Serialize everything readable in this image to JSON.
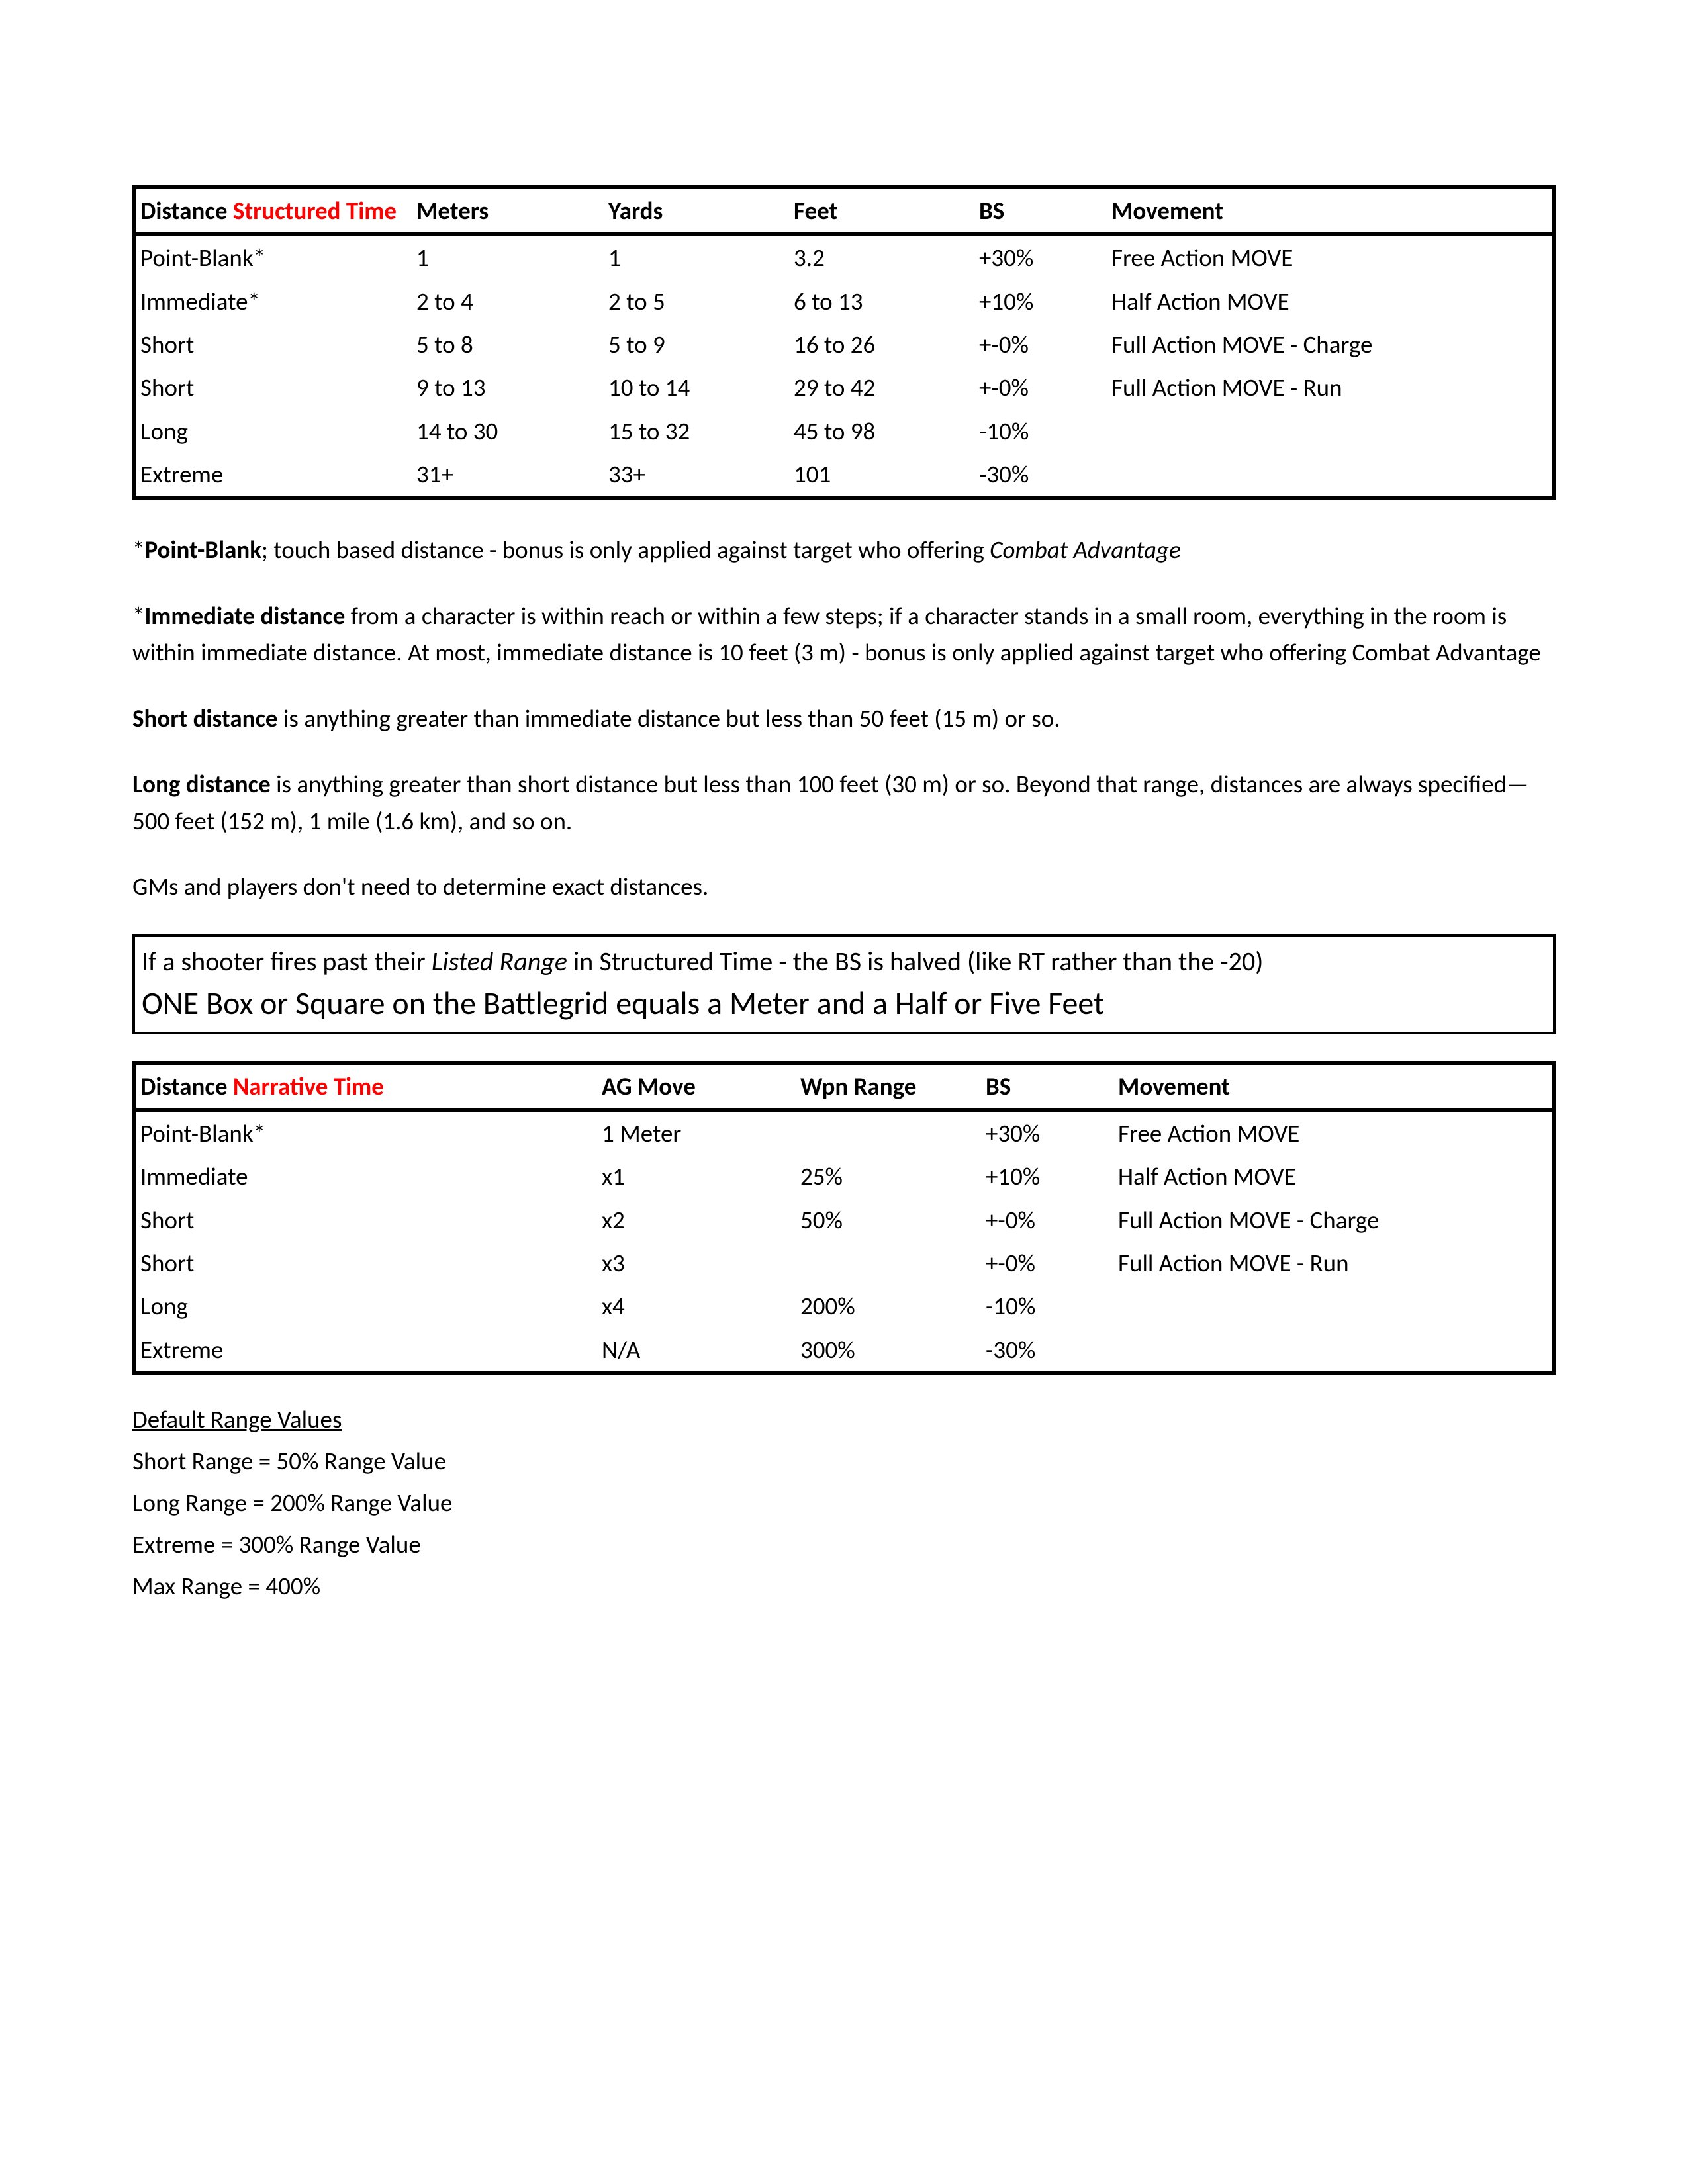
{
  "colors": {
    "border": "#000000",
    "text": "#000000",
    "red": "#ff0000",
    "background": "#ffffff"
  },
  "table1": {
    "header": {
      "distance_label": "Distance",
      "time_label": "Structured Time",
      "meters": "Meters",
      "yards": "Yards",
      "feet": "Feet",
      "bs": "BS",
      "movement": "Movement"
    },
    "rows": [
      {
        "d": "Point-Blank*",
        "m": "1",
        "y": "1",
        "f": "3.2",
        "bs": "+30%",
        "mov": "Free Action MOVE"
      },
      {
        "d": "Immediate*",
        "m": "2 to 4",
        "y": "2 to 5",
        "f": "6 to 13",
        "bs": "+10%",
        "mov": "Half Action MOVE"
      },
      {
        "d": "Short",
        "m": "5 to 8",
        "y": "5 to 9",
        "f": "16 to 26",
        "bs": "+-0%",
        "mov": "Full Action MOVE - Charge"
      },
      {
        "d": "Short",
        "m": "9 to 13",
        "y": "10 to 14",
        "f": "29 to 42",
        "bs": "+-0%",
        "mov": "Full Action MOVE - Run"
      },
      {
        "d": "Long",
        "m": "14 to 30",
        "y": "15 to 32",
        "f": "45 to 98",
        "bs": "-10%",
        "mov": ""
      },
      {
        "d": "Extreme",
        "m": "31+",
        "y": "33+",
        "f": "101",
        "bs": "-30%",
        "mov": ""
      }
    ]
  },
  "notes": {
    "pb_pre": "*",
    "pb_b": "Point-Blank",
    "pb_mid": "; touch based distance - bonus is only applied against target who offering ",
    "pb_i": "Combat Advantage",
    "imm_pre": "*",
    "imm_b": "Immediate distance",
    "imm_rest": " from a character is within reach or within a few steps; if a character stands in a small room, everything in the room is within immediate distance. At most, immediate distance is 10 feet (3 m) - bonus is only applied against target who offering Combat Advantage",
    "short_b": "Short distance",
    "short_rest": " is anything greater than immediate distance but less than 50 feet (15 m) or so.",
    "long_b": "Long distance",
    "long_rest": " is anything greater than short distance but less than 100 feet (30 m) or so. Beyond that range, distances are always specified—500 feet (152 m), 1 mile (1.6 km), and so on.",
    "gms": "GMs and players don't need to determine exact distances."
  },
  "callout": {
    "l1_a": "If a shooter fires past their ",
    "l1_i": "Listed Range",
    "l1_b": "  in Structured Time - the BS is halved (like RT rather than the -20)",
    "l2": "ONE Box or Square on the Battlegrid equals a Meter and a Half or Five Feet"
  },
  "table2": {
    "header": {
      "distance_label": "Distance",
      "time_label": "Narrative Time",
      "ag": "AG Move",
      "wpn": "Wpn Range",
      "bs": "BS",
      "movement": "Movement"
    },
    "rows": [
      {
        "d": "Point-Blank*",
        "ag": "1 Meter",
        "wpn": "",
        "bs": "+30%",
        "mov": "Free Action MOVE"
      },
      {
        "d": "Immediate",
        "ag": "x1",
        "wpn": "25%",
        "bs": "+10%",
        "mov": "Half Action MOVE"
      },
      {
        "d": "Short",
        "ag": "x2",
        "wpn": "50%",
        "bs": "+-0%",
        "mov": "Full Action MOVE - Charge"
      },
      {
        "d": "Short",
        "ag": "x3",
        "wpn": "",
        "bs": "+-0%",
        "mov": "Full Action MOVE - Run"
      },
      {
        "d": "Long",
        "ag": "x4",
        "wpn": "200%",
        "bs": "-10%",
        "mov": ""
      },
      {
        "d": "Extreme",
        "ag": "N/A",
        "wpn": "300%",
        "bs": "-30%",
        "mov": ""
      }
    ]
  },
  "defaults": {
    "title": "Default Range Values",
    "l1": "Short Range = 50% Range Value",
    "l2": "Long Range = 200% Range Value",
    "l3": "Extreme = 300% Range Value",
    "l4": "Max Range = 400%"
  }
}
